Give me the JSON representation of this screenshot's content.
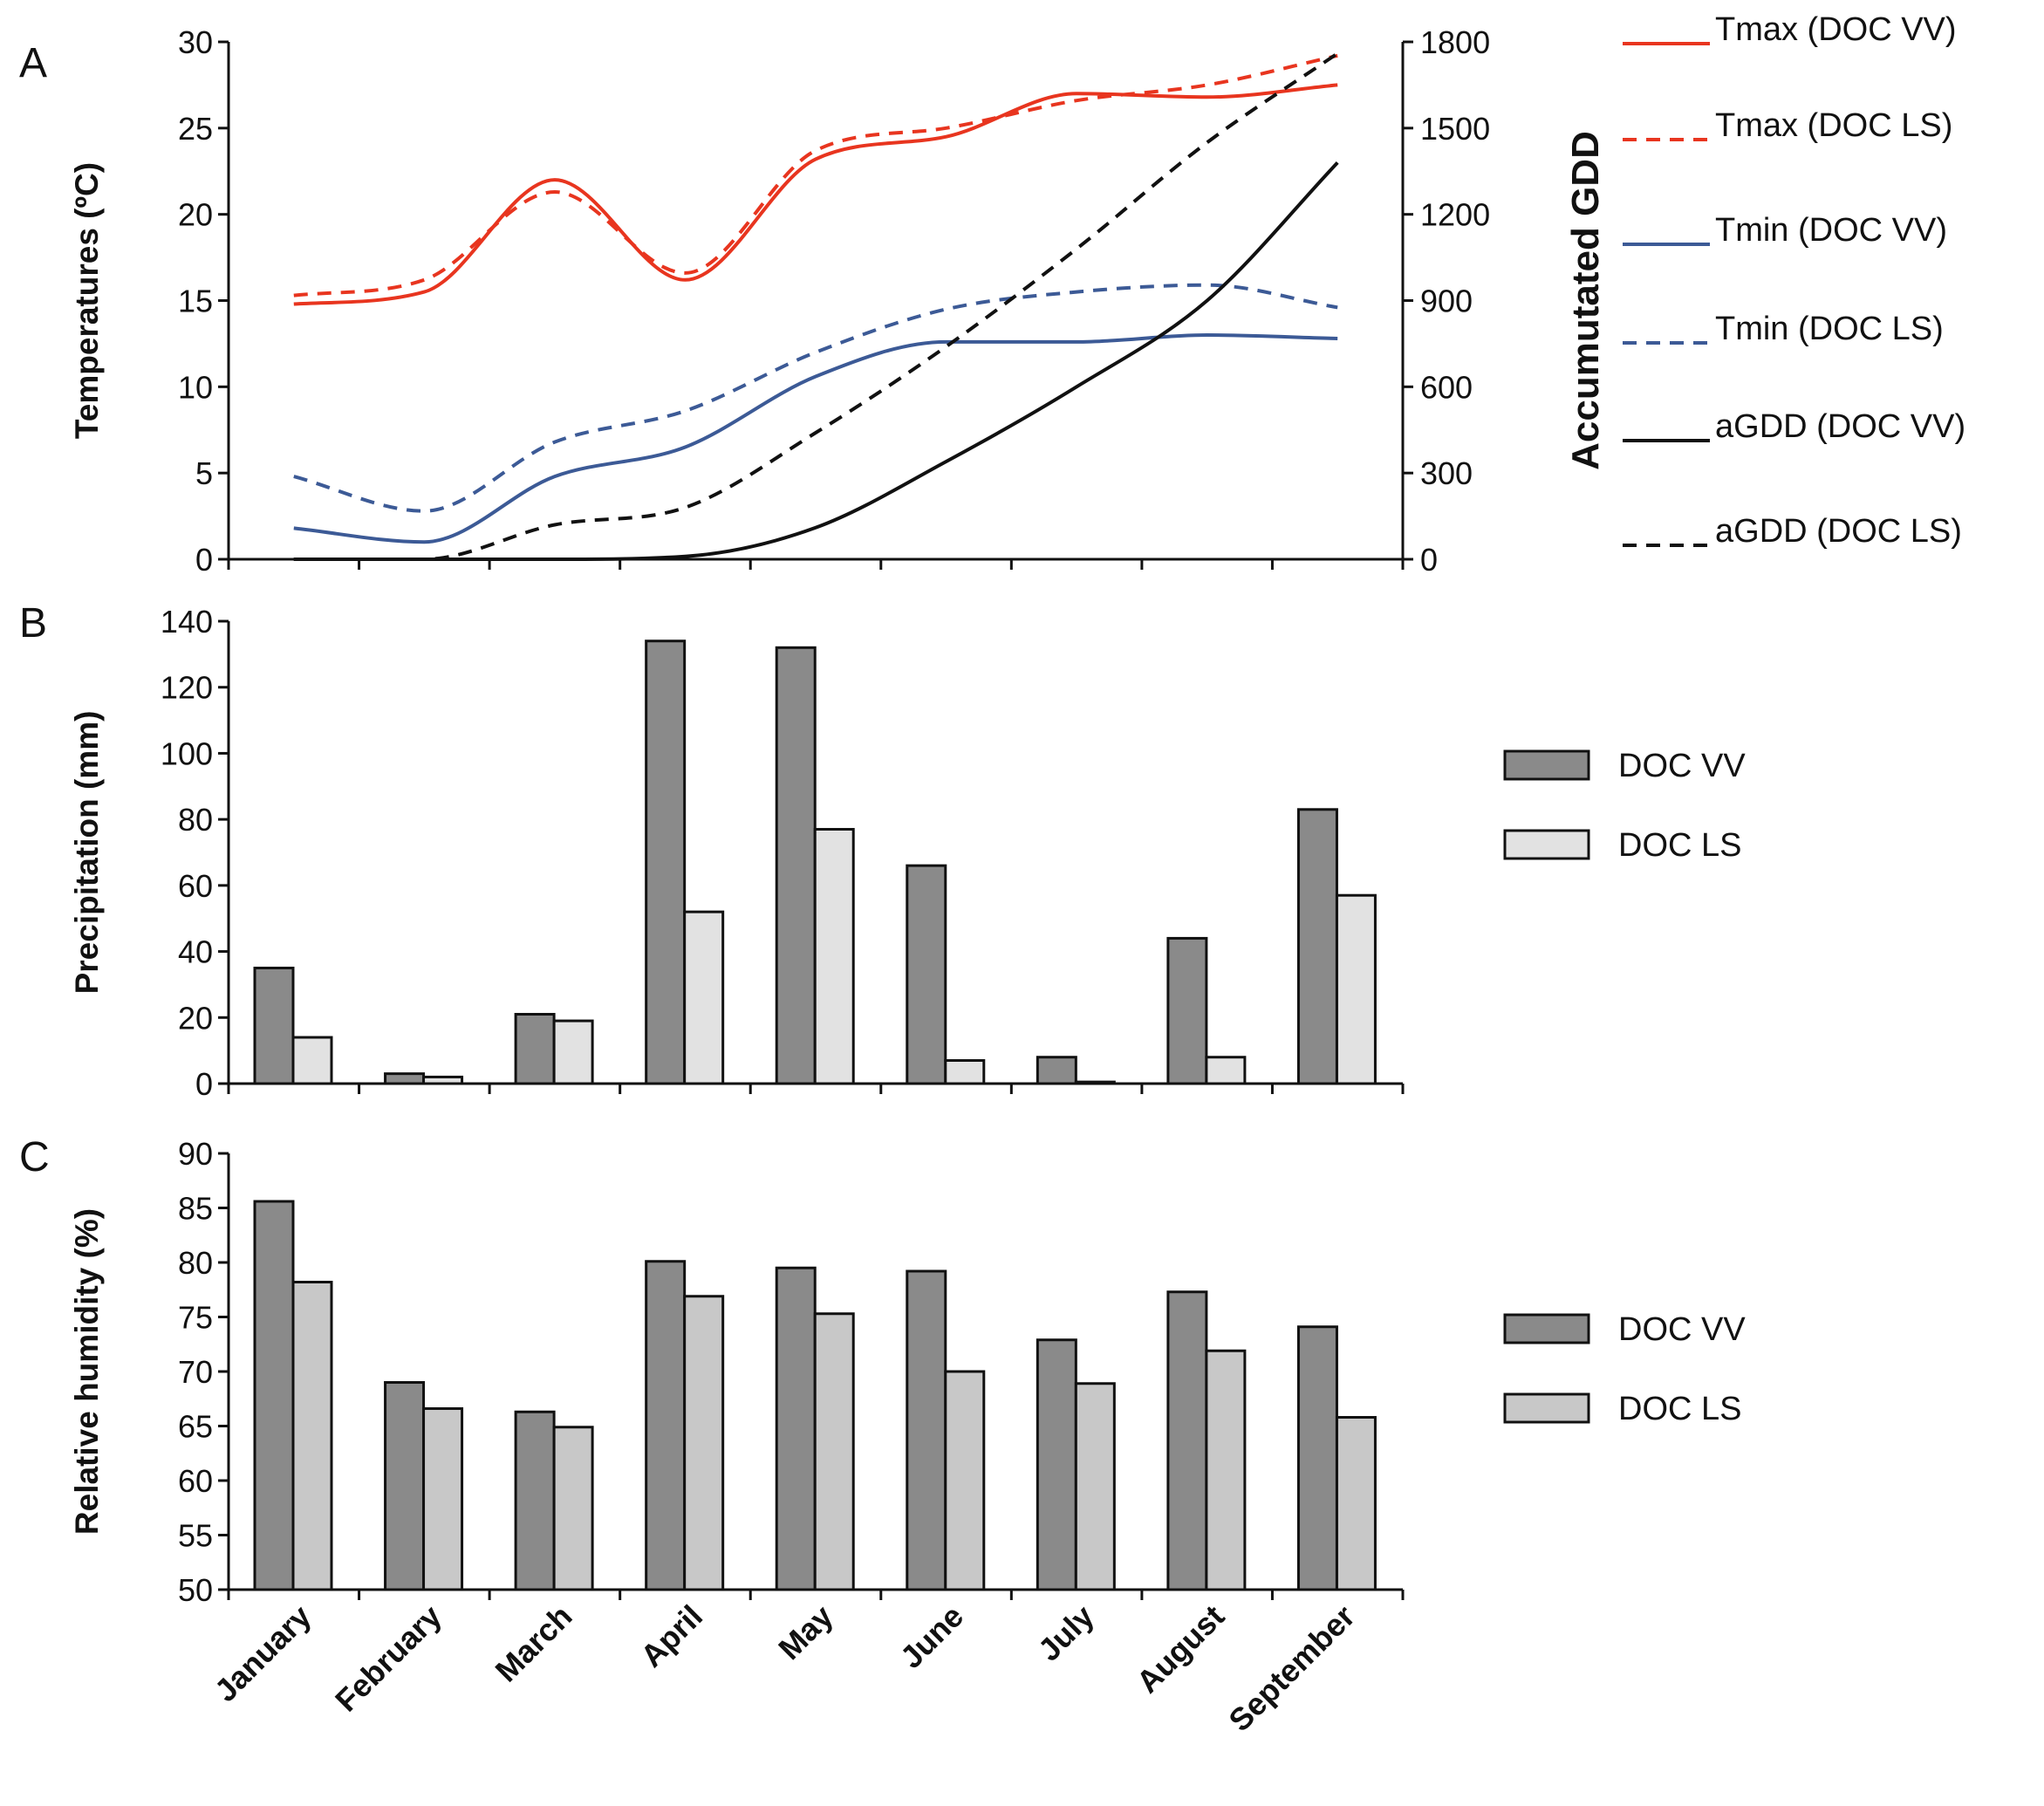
{
  "chart_data": [
    {
      "panel": "A",
      "type": "line",
      "categories": [
        "January",
        "February",
        "March",
        "April",
        "May",
        "June",
        "July",
        "August",
        "September"
      ],
      "ylabel": "Temperatures (ºC)",
      "ylim": [
        0,
        30
      ],
      "yticks": [
        0,
        5,
        10,
        15,
        20,
        25,
        30
      ],
      "y2label": "Accumutated GDD",
      "y2lim": [
        0,
        1800
      ],
      "y2ticks": [
        0,
        300,
        600,
        900,
        1200,
        1500,
        1800
      ],
      "series": [
        {
          "name": "Tmax (DOC VV)",
          "axis": "left",
          "color": "#e8351f",
          "dash": false,
          "values": [
            14.8,
            15.5,
            22.0,
            16.2,
            23.2,
            24.5,
            27.0,
            26.8,
            27.5
          ]
        },
        {
          "name": "Tmax (DOC LS)",
          "axis": "left",
          "color": "#e8351f",
          "dash": true,
          "values": [
            15.3,
            16.2,
            21.3,
            16.6,
            23.7,
            25.0,
            26.6,
            27.5,
            29.2
          ]
        },
        {
          "name": "Tmin (DOC VV)",
          "axis": "left",
          "color": "#3c5a96",
          "dash": false,
          "values": [
            1.8,
            1.0,
            4.8,
            6.5,
            10.6,
            12.6,
            12.6,
            13.0,
            12.8
          ]
        },
        {
          "name": "Tmin (DOC LS)",
          "axis": "left",
          "color": "#3c5a96",
          "dash": true,
          "values": [
            4.8,
            2.8,
            6.8,
            8.6,
            12.0,
            14.5,
            15.5,
            15.9,
            14.6
          ]
        },
        {
          "name": "aGDD (DOC VV)",
          "axis": "right",
          "color": "#111111",
          "dash": false,
          "values": [
            0,
            0,
            0,
            10,
            110,
            340,
            600,
            900,
            1380
          ]
        },
        {
          "name": "aGDD (DOC LS)",
          "axis": "right",
          "color": "#111111",
          "dash": true,
          "values": [
            0,
            0,
            120,
            180,
            440,
            740,
            1080,
            1450,
            1760
          ]
        }
      ]
    },
    {
      "panel": "B",
      "type": "bar",
      "categories": [
        "January",
        "February",
        "March",
        "April",
        "May",
        "June",
        "July",
        "August",
        "September"
      ],
      "ylabel": "Precipitation (mm)",
      "ylim": [
        0,
        140
      ],
      "yticks": [
        0,
        20,
        40,
        60,
        80,
        100,
        120,
        140
      ],
      "series": [
        {
          "name": "DOC VV",
          "color": "#8a8a8a",
          "values": [
            35,
            3,
            21,
            134,
            132,
            66,
            8,
            44,
            83
          ]
        },
        {
          "name": "DOC LS",
          "color": "#e2e2e2",
          "values": [
            14,
            2,
            19,
            52,
            77,
            7,
            0.5,
            8,
            57
          ]
        }
      ]
    },
    {
      "panel": "C",
      "type": "bar",
      "categories": [
        "January",
        "February",
        "March",
        "April",
        "May",
        "June",
        "July",
        "August",
        "September"
      ],
      "ylabel": "Relative humidity (%)",
      "ylim": [
        50,
        90
      ],
      "yticks": [
        50,
        55,
        60,
        65,
        70,
        75,
        80,
        85,
        90
      ],
      "series": [
        {
          "name": "DOC VV",
          "color": "#8a8a8a",
          "values": [
            85.6,
            69.0,
            66.3,
            80.1,
            79.5,
            79.2,
            72.9,
            77.3,
            74.1
          ]
        },
        {
          "name": "DOC LS",
          "color": "#c8c8c8",
          "values": [
            78.2,
            66.6,
            64.9,
            76.9,
            75.3,
            70.0,
            68.9,
            71.9,
            65.8
          ]
        }
      ]
    }
  ]
}
